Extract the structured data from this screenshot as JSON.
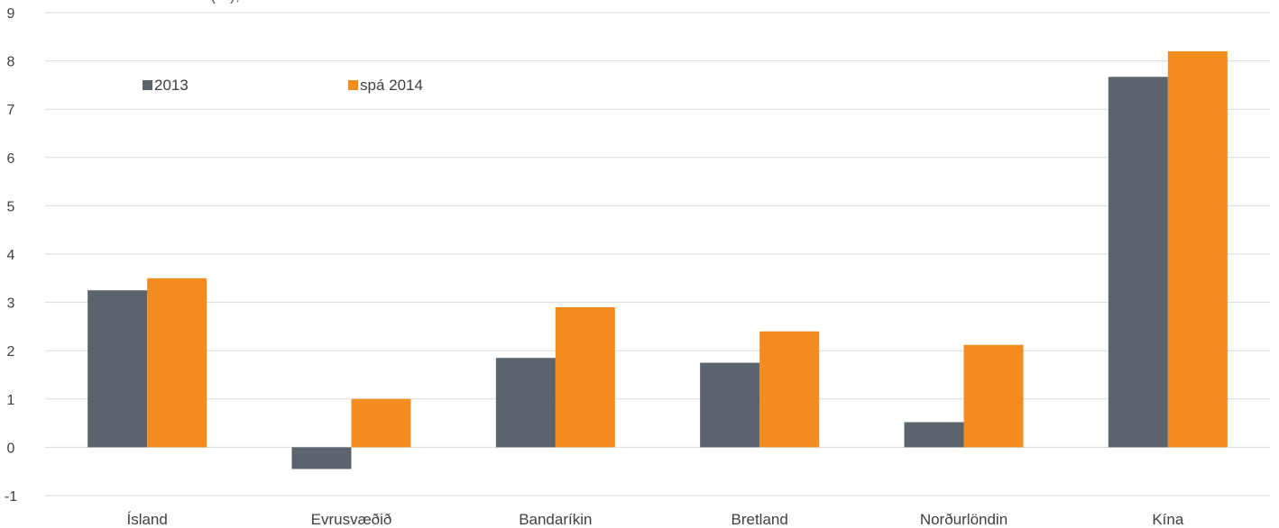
{
  "chart_data": {
    "type": "bar",
    "title": "… (%), … … … … … … … …",
    "categories": [
      "Ísland",
      "Evrusvæðið",
      "Bandaríkin",
      "Bretland",
      "Norðurlöndin",
      "Kína"
    ],
    "series": [
      {
        "name": "2013",
        "values": [
          3.25,
          -0.45,
          1.85,
          1.75,
          0.52,
          7.67
        ],
        "color": "#5b646c"
      },
      {
        "name": "spá 2014",
        "values": [
          3.5,
          1.0,
          2.9,
          2.4,
          2.12,
          8.2
        ],
        "color": "#f48b1f"
      }
    ],
    "yticks": [
      -1,
      0,
      1,
      2,
      3,
      4,
      5,
      6,
      7,
      8,
      9
    ],
    "ylim": [
      -1,
      9
    ],
    "grid": true,
    "legend_position": "top-left"
  }
}
